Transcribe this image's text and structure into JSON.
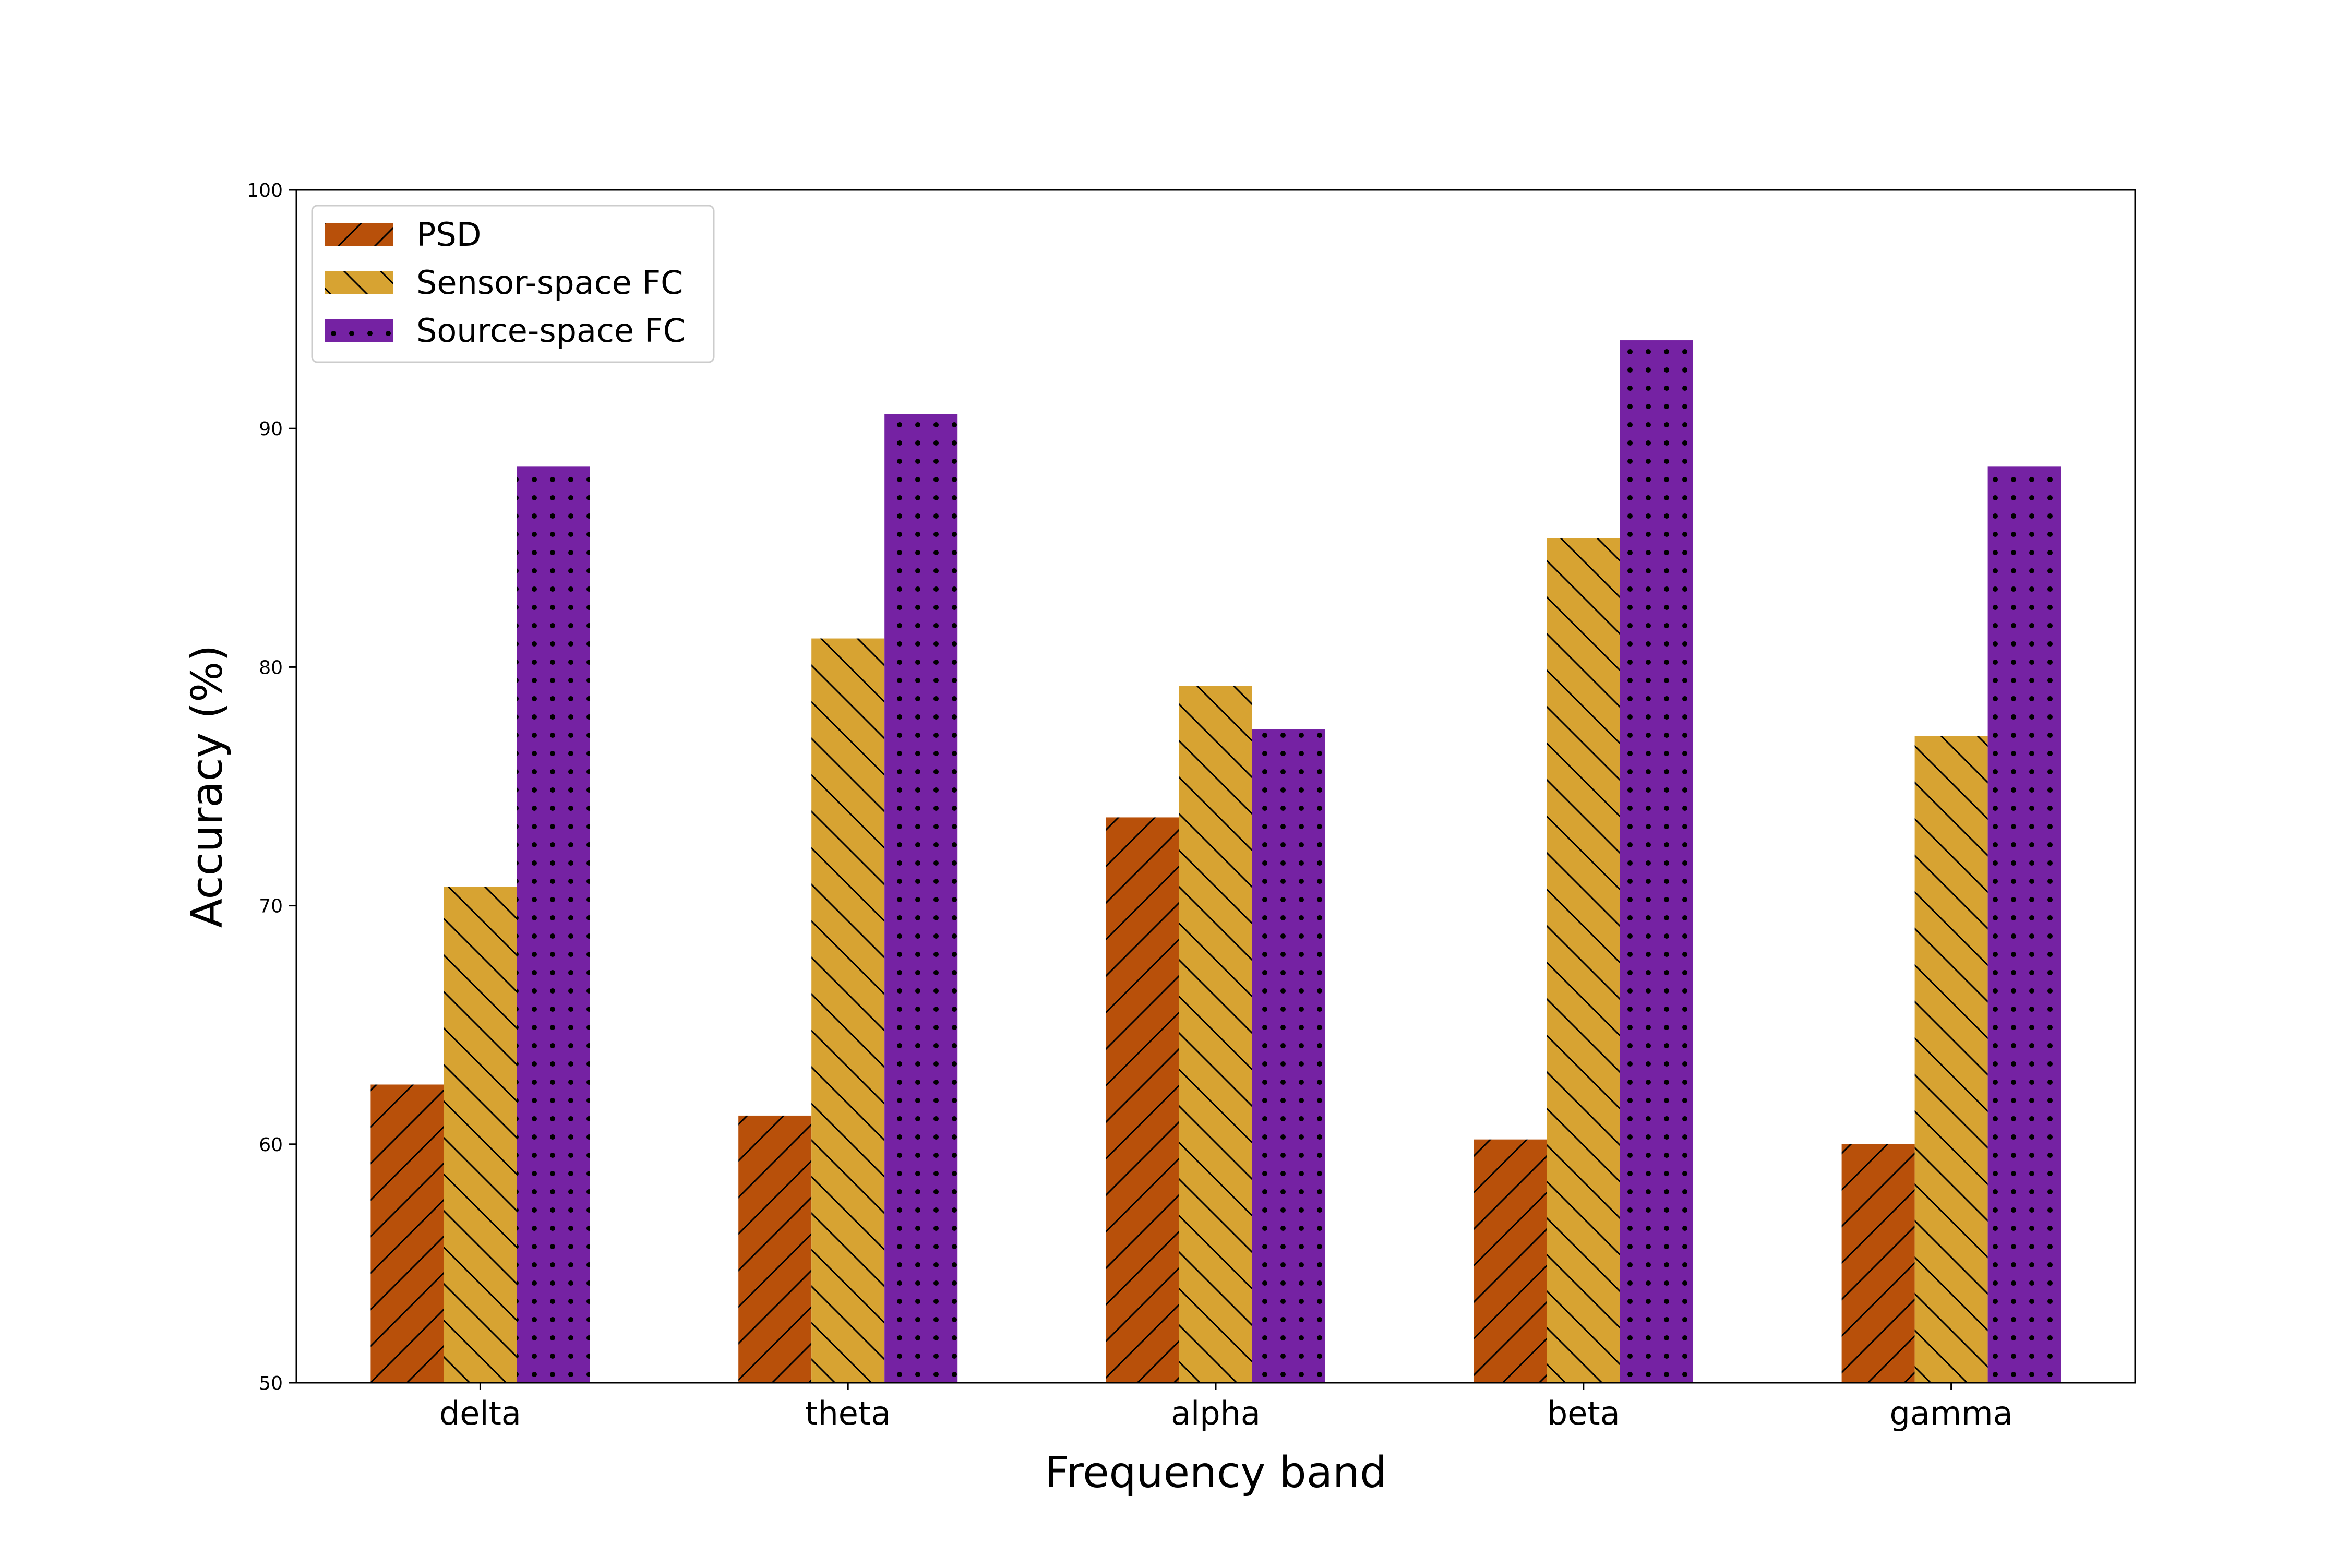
{
  "chart_data": {
    "type": "bar",
    "title": "",
    "xlabel": "Frequency band",
    "ylabel": "Accuracy (%)",
    "ylim": [
      50,
      100
    ],
    "yticks": [
      50,
      60,
      70,
      80,
      90,
      100
    ],
    "categories": [
      "delta",
      "theta",
      "alpha",
      "beta",
      "gamma"
    ],
    "series": [
      {
        "name": "PSD",
        "values": [
          62.5,
          61.2,
          73.7,
          60.2,
          60.0
        ],
        "color": "#B8500A",
        "hatch": "diagonal-forward"
      },
      {
        "name": "Sensor-space FC",
        "values": [
          70.8,
          81.2,
          79.2,
          85.4,
          77.1
        ],
        "color": "#D7A332",
        "hatch": "diagonal-back"
      },
      {
        "name": "Source-space FC",
        "values": [
          88.4,
          90.6,
          77.4,
          93.7,
          88.4
        ],
        "color": "#7522A3",
        "hatch": "dots"
      }
    ],
    "legend_position": "top-left",
    "grid": false
  }
}
